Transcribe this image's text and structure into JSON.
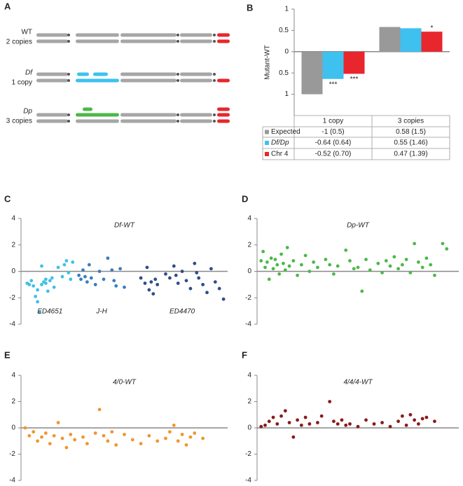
{
  "diagram": {
    "panel": "A",
    "rows": [
      {
        "label": "WT",
        "sublabel": "2 copies"
      },
      {
        "label": "Df",
        "sublabel": "1 copy"
      },
      {
        "label": "Dp",
        "sublabel": "3 copies"
      }
    ]
  },
  "chart_data": [
    {
      "type": "bar",
      "panel": "B",
      "y_label": "Mutant-WT",
      "categories": [
        "1 copy",
        "3 copies"
      ],
      "ylim": [
        -1.5,
        1
      ],
      "yticks": [
        1,
        0.5,
        0,
        {
          "value": -0.5,
          "label": "0.5"
        },
        {
          "value": -1,
          "label": "1"
        }
      ],
      "series": [
        {
          "name": "Expected",
          "color": "#999999",
          "values": [
            -1,
            0.58
          ],
          "value_labels": [
            "-1 (0.5)",
            "0.58 (1.5)"
          ]
        },
        {
          "name": "Df/Dp",
          "color": "#3ec1ee",
          "values": [
            -0.64,
            0.55
          ],
          "value_labels": [
            "-0.64 (0.64)",
            "0.55 (1.46)"
          ],
          "annotations": [
            "***",
            null
          ]
        },
        {
          "name": "Chr 4",
          "color": "#e8262d",
          "values": [
            -0.52,
            0.47
          ],
          "value_labels": [
            "-0.52 (0.70)",
            "0.47 (1.39)"
          ],
          "annotations": [
            "***",
            "*"
          ]
        }
      ]
    },
    {
      "type": "scatter",
      "panel": "C",
      "title": "Df-WT",
      "xlim": [
        0,
        100
      ],
      "ylim": [
        -4,
        4
      ],
      "yticks": [
        -4,
        -2,
        0,
        2,
        4
      ],
      "series": [
        {
          "name": "ED4651",
          "color": "#3ec1e6",
          "x": [
            3,
            4,
            5,
            6,
            7,
            8,
            9,
            10,
            11,
            12,
            13,
            14,
            15,
            16,
            18,
            20,
            21,
            22,
            23,
            24,
            25,
            8,
            10,
            12
          ],
          "values": [
            -0.9,
            -1.0,
            -0.7,
            -1.1,
            -1.9,
            -2.3,
            -3.1,
            -1.0,
            -0.8,
            -0.6,
            -1.5,
            -0.7,
            -0.5,
            -1.2,
            0.3,
            -0.4,
            0.5,
            0.8,
            -0.1,
            -0.6,
            0.7,
            -1.4,
            0.4,
            -0.9
          ]
        },
        {
          "name": "J-H",
          "color": "#3a7dbf",
          "x": [
            28,
            29,
            30,
            31,
            32,
            34,
            36,
            38,
            40,
            42,
            44,
            46,
            48,
            50,
            33,
            45
          ],
          "values": [
            -0.3,
            -0.6,
            0.1,
            -0.4,
            -0.8,
            -0.5,
            -1.0,
            0.0,
            -0.6,
            1.0,
            0.1,
            -1.1,
            0.2,
            -1.2,
            0.5,
            -0.7
          ]
        },
        {
          "name": "ED4470",
          "color": "#2e4d8a",
          "x": [
            58,
            60,
            61,
            62,
            63,
            64,
            65,
            66,
            70,
            72,
            74,
            76,
            78,
            80,
            82,
            84,
            86,
            88,
            90,
            92,
            94,
            96,
            98,
            75,
            85
          ],
          "values": [
            -0.5,
            -0.9,
            0.3,
            -1.4,
            -0.8,
            -1.7,
            -0.6,
            -1.0,
            -0.2,
            -0.5,
            0.4,
            -0.9,
            0.0,
            -0.7,
            -1.3,
            0.6,
            -0.5,
            -1.0,
            -1.6,
            0.2,
            -0.8,
            -1.3,
            -2.1,
            -0.3,
            -0.1
          ]
        }
      ]
    },
    {
      "type": "scatter",
      "panel": "D",
      "title": "Dp-WT",
      "xlim": [
        0,
        100
      ],
      "ylim": [
        -4,
        4
      ],
      "yticks": [
        -4,
        -2,
        0,
        2,
        4
      ],
      "series": [
        {
          "color": "#4cb848",
          "x": [
            2,
            3,
            4,
            5,
            6,
            7,
            8,
            9,
            10,
            11,
            12,
            13,
            14,
            15,
            16,
            18,
            20,
            22,
            24,
            26,
            28,
            30,
            34,
            36,
            38,
            40,
            44,
            46,
            48,
            50,
            52,
            54,
            56,
            60,
            62,
            64,
            66,
            68,
            70,
            72,
            74,
            76,
            78,
            80,
            82,
            84,
            86,
            88,
            92,
            94
          ],
          "values": [
            0.8,
            1.5,
            0.3,
            0.7,
            -0.6,
            1.0,
            0.2,
            0.9,
            0.5,
            -0.2,
            1.3,
            0.6,
            0.1,
            1.8,
            0.4,
            0.8,
            -0.3,
            0.5,
            1.2,
            0.0,
            0.7,
            0.3,
            0.9,
            0.5,
            -0.2,
            0.4,
            1.6,
            0.8,
            0.2,
            0.3,
            -1.5,
            0.9,
            0.1,
            0.6,
            -0.1,
            0.8,
            0.4,
            1.1,
            0.2,
            0.5,
            0.9,
            -0.1,
            2.1,
            0.7,
            0.3,
            1.0,
            0.5,
            -0.3,
            2.1,
            1.7
          ]
        }
      ]
    },
    {
      "type": "scatter",
      "panel": "E",
      "title": "4/0-WT",
      "xlim": [
        0,
        100
      ],
      "ylim": [
        -4,
        4
      ],
      "yticks": [
        -4,
        -2,
        0,
        2,
        4
      ],
      "series": [
        {
          "color": "#f0962e",
          "x": [
            2,
            4,
            6,
            8,
            10,
            12,
            14,
            16,
            18,
            20,
            22,
            24,
            26,
            30,
            32,
            36,
            38,
            40,
            42,
            44,
            46,
            50,
            54,
            58,
            62,
            66,
            70,
            72,
            74,
            76,
            78,
            80,
            82,
            84,
            88
          ],
          "values": [
            0.0,
            -0.6,
            -0.3,
            -1.0,
            -0.7,
            -0.4,
            -1.2,
            -0.6,
            0.4,
            -0.8,
            -1.5,
            -0.5,
            -0.9,
            -0.7,
            -1.2,
            -0.4,
            1.4,
            -0.6,
            -1.0,
            -0.3,
            -1.3,
            -0.5,
            -0.9,
            -1.2,
            -0.6,
            -1.0,
            -0.8,
            -0.3,
            0.2,
            -1.0,
            -0.5,
            -1.3,
            -0.7,
            -0.4,
            -0.8
          ]
        }
      ]
    },
    {
      "type": "scatter",
      "panel": "F",
      "title": "4/4/4-WT",
      "xlim": [
        0,
        100
      ],
      "ylim": [
        -4,
        4
      ],
      "yticks": [
        -4,
        -2,
        0,
        2,
        4
      ],
      "series": [
        {
          "color": "#8b1a1a",
          "x": [
            2,
            4,
            6,
            8,
            10,
            12,
            14,
            16,
            18,
            20,
            22,
            24,
            26,
            30,
            32,
            36,
            38,
            40,
            42,
            44,
            46,
            50,
            54,
            58,
            62,
            66,
            70,
            72,
            74,
            76,
            78,
            80,
            82,
            84,
            88
          ],
          "values": [
            0.1,
            0.2,
            0.5,
            0.8,
            0.3,
            0.9,
            1.3,
            0.4,
            -0.7,
            0.6,
            0.2,
            0.8,
            0.3,
            0.4,
            0.9,
            2.0,
            0.5,
            0.3,
            0.6,
            0.2,
            0.3,
            0.1,
            0.6,
            0.3,
            0.4,
            0.1,
            0.5,
            0.9,
            0.2,
            1.0,
            0.6,
            0.3,
            0.7,
            0.8,
            0.5
          ]
        }
      ]
    }
  ]
}
